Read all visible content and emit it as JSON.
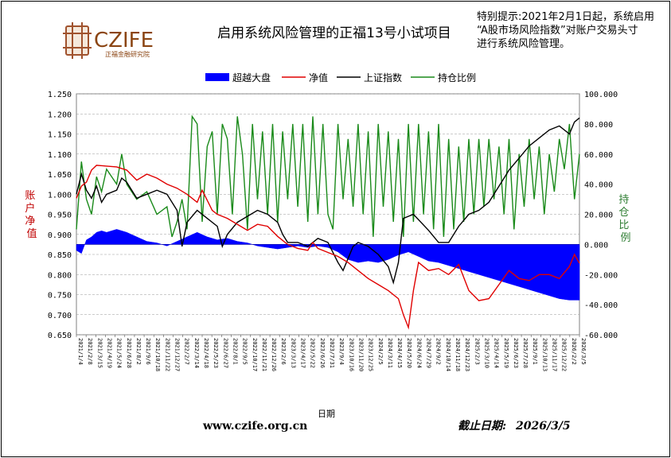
{
  "brand": {
    "name": "CZIFE",
    "subname": "正福金融研究院",
    "website": "www.czife.org.cn"
  },
  "notice": {
    "lines": [
      "特别提示:2021年2月1日起，系统启用",
      "“A股市场风险指数”对账户交易头寸",
      "进行系统风险管理。"
    ]
  },
  "footer": {
    "deadline_label": "截止日期:",
    "deadline_value": "2026/3/5"
  },
  "colors": {
    "excess": "#0000ff",
    "nav": "#e00000",
    "index": "#000000",
    "position": "#1a8a1a",
    "grid": "#9a9a9a"
  },
  "chart_data": {
    "type": "line",
    "title": "启用系统风险管理的正福13号小试项目",
    "legend_position": "top",
    "legend": [
      "超越大盘",
      "净值",
      "上证指数",
      "持仓比例"
    ],
    "xlabel": "日期",
    "ylabel_left": "账户净值",
    "ylabel_right": "持仓比例",
    "ylim_left": [
      0.65,
      1.25
    ],
    "ylim_right": [
      -60,
      100
    ],
    "yticks_left": [
      "1.250",
      "1.200",
      "1.150",
      "1.100",
      "1.050",
      "1.000",
      "0.950",
      "0.900",
      "0.850",
      "0.800",
      "0.750",
      "0.700",
      "0.650"
    ],
    "yticks_right": [
      "100.000",
      "80.000",
      "60.000",
      "40.000",
      "20.000",
      "0.000",
      "-20.000",
      "-40.000",
      "-60.000"
    ],
    "grid": true,
    "x_range": [
      "2021/1/4",
      "2026/3/5"
    ],
    "series": [
      {
        "name": "净值",
        "axis": "left",
        "style": "line",
        "points": [
          [
            0.0,
            0.99
          ],
          [
            0.01,
            1.02
          ],
          [
            0.02,
            1.03
          ],
          [
            0.03,
            1.06
          ],
          [
            0.04,
            1.072
          ],
          [
            0.06,
            1.07
          ],
          [
            0.08,
            1.068
          ],
          [
            0.1,
            1.06
          ],
          [
            0.12,
            1.035
          ],
          [
            0.14,
            1.05
          ],
          [
            0.16,
            1.04
          ],
          [
            0.18,
            1.025
          ],
          [
            0.2,
            1.015
          ],
          [
            0.22,
            1.0
          ],
          [
            0.24,
            0.98
          ],
          [
            0.25,
            1.01
          ],
          [
            0.26,
            0.985
          ],
          [
            0.27,
            0.96
          ],
          [
            0.28,
            0.95
          ],
          [
            0.3,
            0.94
          ],
          [
            0.32,
            0.925
          ],
          [
            0.34,
            0.91
          ],
          [
            0.36,
            0.925
          ],
          [
            0.38,
            0.92
          ],
          [
            0.4,
            0.895
          ],
          [
            0.42,
            0.875
          ],
          [
            0.44,
            0.865
          ],
          [
            0.46,
            0.86
          ],
          [
            0.47,
            0.88
          ],
          [
            0.48,
            0.865
          ],
          [
            0.5,
            0.855
          ],
          [
            0.52,
            0.845
          ],
          [
            0.54,
            0.83
          ],
          [
            0.56,
            0.81
          ],
          [
            0.58,
            0.79
          ],
          [
            0.6,
            0.775
          ],
          [
            0.62,
            0.76
          ],
          [
            0.64,
            0.74
          ],
          [
            0.65,
            0.7
          ],
          [
            0.66,
            0.668
          ],
          [
            0.67,
            0.76
          ],
          [
            0.68,
            0.83
          ],
          [
            0.69,
            0.82
          ],
          [
            0.7,
            0.81
          ],
          [
            0.72,
            0.815
          ],
          [
            0.74,
            0.8
          ],
          [
            0.76,
            0.825
          ],
          [
            0.78,
            0.76
          ],
          [
            0.8,
            0.735
          ],
          [
            0.82,
            0.74
          ],
          [
            0.84,
            0.775
          ],
          [
            0.86,
            0.81
          ],
          [
            0.88,
            0.79
          ],
          [
            0.9,
            0.785
          ],
          [
            0.92,
            0.8
          ],
          [
            0.94,
            0.8
          ],
          [
            0.96,
            0.79
          ],
          [
            0.98,
            0.82
          ],
          [
            0.99,
            0.85
          ],
          [
            1.0,
            0.828
          ]
        ]
      },
      {
        "name": "上证指数",
        "axis": "left",
        "style": "line",
        "points": [
          [
            0.0,
            1.0
          ],
          [
            0.01,
            1.05
          ],
          [
            0.02,
            1.01
          ],
          [
            0.03,
            0.99
          ],
          [
            0.04,
            1.02
          ],
          [
            0.05,
            0.98
          ],
          [
            0.06,
            1.0
          ],
          [
            0.08,
            1.01
          ],
          [
            0.09,
            1.04
          ],
          [
            0.1,
            1.03
          ],
          [
            0.12,
            0.99
          ],
          [
            0.14,
            1.0
          ],
          [
            0.16,
            1.01
          ],
          [
            0.18,
            1.0
          ],
          [
            0.2,
            0.96
          ],
          [
            0.21,
            0.87
          ],
          [
            0.22,
            0.93
          ],
          [
            0.24,
            0.96
          ],
          [
            0.26,
            0.94
          ],
          [
            0.28,
            0.92
          ],
          [
            0.29,
            0.87
          ],
          [
            0.3,
            0.9
          ],
          [
            0.32,
            0.93
          ],
          [
            0.34,
            0.945
          ],
          [
            0.36,
            0.96
          ],
          [
            0.38,
            0.95
          ],
          [
            0.4,
            0.93
          ],
          [
            0.41,
            0.9
          ],
          [
            0.42,
            0.88
          ],
          [
            0.44,
            0.88
          ],
          [
            0.46,
            0.87
          ],
          [
            0.48,
            0.89
          ],
          [
            0.5,
            0.88
          ],
          [
            0.52,
            0.83
          ],
          [
            0.53,
            0.81
          ],
          [
            0.55,
            0.87
          ],
          [
            0.56,
            0.88
          ],
          [
            0.58,
            0.87
          ],
          [
            0.6,
            0.85
          ],
          [
            0.62,
            0.82
          ],
          [
            0.63,
            0.78
          ],
          [
            0.64,
            0.83
          ],
          [
            0.65,
            0.94
          ],
          [
            0.67,
            0.95
          ],
          [
            0.7,
            0.91
          ],
          [
            0.72,
            0.88
          ],
          [
            0.74,
            0.88
          ],
          [
            0.76,
            0.92
          ],
          [
            0.78,
            0.95
          ],
          [
            0.8,
            0.96
          ],
          [
            0.82,
            0.98
          ],
          [
            0.84,
            1.02
          ],
          [
            0.86,
            1.06
          ],
          [
            0.88,
            1.09
          ],
          [
            0.9,
            1.12
          ],
          [
            0.92,
            1.14
          ],
          [
            0.94,
            1.16
          ],
          [
            0.96,
            1.17
          ],
          [
            0.98,
            1.15
          ],
          [
            0.99,
            1.18
          ],
          [
            1.0,
            1.19
          ]
        ]
      },
      {
        "name": "持仓比例",
        "axis": "right",
        "style": "line",
        "points": [
          [
            0.0,
            10
          ],
          [
            0.01,
            55
          ],
          [
            0.02,
            30
          ],
          [
            0.03,
            20
          ],
          [
            0.04,
            45
          ],
          [
            0.05,
            35
          ],
          [
            0.06,
            50
          ],
          [
            0.08,
            40
          ],
          [
            0.09,
            60
          ],
          [
            0.1,
            40
          ],
          [
            0.12,
            30
          ],
          [
            0.14,
            35
          ],
          [
            0.16,
            20
          ],
          [
            0.18,
            25
          ],
          [
            0.19,
            5
          ],
          [
            0.2,
            15
          ],
          [
            0.21,
            30
          ],
          [
            0.22,
            10
          ],
          [
            0.23,
            85
          ],
          [
            0.24,
            80
          ],
          [
            0.25,
            15
          ],
          [
            0.26,
            65
          ],
          [
            0.27,
            75
          ],
          [
            0.28,
            20
          ],
          [
            0.29,
            80
          ],
          [
            0.3,
            70
          ],
          [
            0.31,
            20
          ],
          [
            0.32,
            85
          ],
          [
            0.33,
            60
          ],
          [
            0.34,
            10
          ],
          [
            0.35,
            80
          ],
          [
            0.36,
            30
          ],
          [
            0.37,
            75
          ],
          [
            0.38,
            20
          ],
          [
            0.39,
            80
          ],
          [
            0.4,
            15
          ],
          [
            0.41,
            75
          ],
          [
            0.42,
            30
          ],
          [
            0.43,
            80
          ],
          [
            0.44,
            25
          ],
          [
            0.45,
            80
          ],
          [
            0.46,
            15
          ],
          [
            0.47,
            85
          ],
          [
            0.48,
            20
          ],
          [
            0.49,
            80
          ],
          [
            0.5,
            20
          ],
          [
            0.51,
            10
          ],
          [
            0.52,
            80
          ],
          [
            0.53,
            30
          ],
          [
            0.54,
            70
          ],
          [
            0.55,
            25
          ],
          [
            0.56,
            80
          ],
          [
            0.57,
            20
          ],
          [
            0.58,
            75
          ],
          [
            0.59,
            5
          ],
          [
            0.6,
            80
          ],
          [
            0.61,
            25
          ],
          [
            0.62,
            75
          ],
          [
            0.63,
            15
          ],
          [
            0.64,
            70
          ],
          [
            0.65,
            5
          ],
          [
            0.66,
            80
          ],
          [
            0.67,
            15
          ],
          [
            0.68,
            80
          ],
          [
            0.69,
            20
          ],
          [
            0.7,
            75
          ],
          [
            0.71,
            10
          ],
          [
            0.72,
            80
          ],
          [
            0.73,
            5
          ],
          [
            0.74,
            70
          ],
          [
            0.75,
            10
          ],
          [
            0.76,
            65
          ],
          [
            0.77,
            15
          ],
          [
            0.78,
            70
          ],
          [
            0.79,
            20
          ],
          [
            0.8,
            70
          ],
          [
            0.81,
            25
          ],
          [
            0.82,
            70
          ],
          [
            0.83,
            30
          ],
          [
            0.84,
            65
          ],
          [
            0.85,
            20
          ],
          [
            0.86,
            70
          ],
          [
            0.87,
            10
          ],
          [
            0.88,
            60
          ],
          [
            0.89,
            25
          ],
          [
            0.9,
            70
          ],
          [
            0.91,
            30
          ],
          [
            0.92,
            65
          ],
          [
            0.93,
            20
          ],
          [
            0.94,
            60
          ],
          [
            0.95,
            35
          ],
          [
            0.96,
            70
          ],
          [
            0.97,
            50
          ],
          [
            0.98,
            80
          ],
          [
            0.99,
            30
          ],
          [
            1.0,
            60
          ]
        ]
      },
      {
        "name": "超越大盘",
        "axis": "right",
        "style": "area",
        "points": [
          [
            0.0,
            -4
          ],
          [
            0.01,
            -6
          ],
          [
            0.02,
            3
          ],
          [
            0.03,
            5
          ],
          [
            0.04,
            8
          ],
          [
            0.05,
            9
          ],
          [
            0.06,
            8
          ],
          [
            0.08,
            10
          ],
          [
            0.1,
            8
          ],
          [
            0.12,
            5
          ],
          [
            0.14,
            2
          ],
          [
            0.16,
            1
          ],
          [
            0.18,
            -1
          ],
          [
            0.2,
            2
          ],
          [
            0.22,
            5
          ],
          [
            0.24,
            8
          ],
          [
            0.26,
            5
          ],
          [
            0.28,
            3
          ],
          [
            0.3,
            4
          ],
          [
            0.32,
            2
          ],
          [
            0.34,
            1
          ],
          [
            0.36,
            -1
          ],
          [
            0.38,
            -2
          ],
          [
            0.4,
            -3
          ],
          [
            0.42,
            -2
          ],
          [
            0.44,
            -1
          ],
          [
            0.46,
            -2
          ],
          [
            0.48,
            -1
          ],
          [
            0.5,
            -2
          ],
          [
            0.52,
            -5
          ],
          [
            0.54,
            -10
          ],
          [
            0.56,
            -12
          ],
          [
            0.58,
            -11
          ],
          [
            0.6,
            -12
          ],
          [
            0.62,
            -10
          ],
          [
            0.64,
            -7
          ],
          [
            0.66,
            -5
          ],
          [
            0.68,
            -8
          ],
          [
            0.7,
            -11
          ],
          [
            0.72,
            -12
          ],
          [
            0.74,
            -14
          ],
          [
            0.76,
            -16
          ],
          [
            0.78,
            -18
          ],
          [
            0.8,
            -20
          ],
          [
            0.82,
            -22
          ],
          [
            0.84,
            -24
          ],
          [
            0.86,
            -26
          ],
          [
            0.88,
            -28
          ],
          [
            0.9,
            -30
          ],
          [
            0.92,
            -32
          ],
          [
            0.94,
            -34
          ],
          [
            0.96,
            -36
          ],
          [
            0.98,
            -37
          ],
          [
            1.0,
            -37
          ]
        ]
      }
    ],
    "x_tick_labels": [
      "2021/1/4",
      "2021/2/8",
      "2021/3/15",
      "2021/4/19",
      "2021/5/24",
      "2021/6/28",
      "2021/8/2",
      "2021/9/6",
      "2021/10/18",
      "2021/11/22",
      "2021/12/27",
      "2022/2/7",
      "2022/3/14",
      "2022/4/18",
      "2022/5/23",
      "2022/6/27",
      "2022/8/1",
      "2022/9/5",
      "2022/10/17",
      "2022/11/21",
      "2022/12/26",
      "2023/2/6",
      "2023/3/13",
      "2023/4/17",
      "2023/5/22",
      "2023/6/26",
      "2023/7/31",
      "2023/9/4",
      "2023/10/16",
      "2023/11/20",
      "2023/12/25",
      "2024/2/5",
      "2024/3/11",
      "2024/4/15",
      "2024/5/20",
      "2024/6/24",
      "2024/7/29",
      "2024/9/2",
      "2024/10/14",
      "2024/11/18",
      "2024/12/23",
      "2025/2/3",
      "2025/3/10",
      "2025/4/14",
      "2025/5/19",
      "2025/6/23",
      "2025/7/28",
      "2025/9/1",
      "2025/10/13",
      "2025/11/17",
      "2025/12/22",
      "2026/2/2",
      "2026/3/5"
    ]
  }
}
